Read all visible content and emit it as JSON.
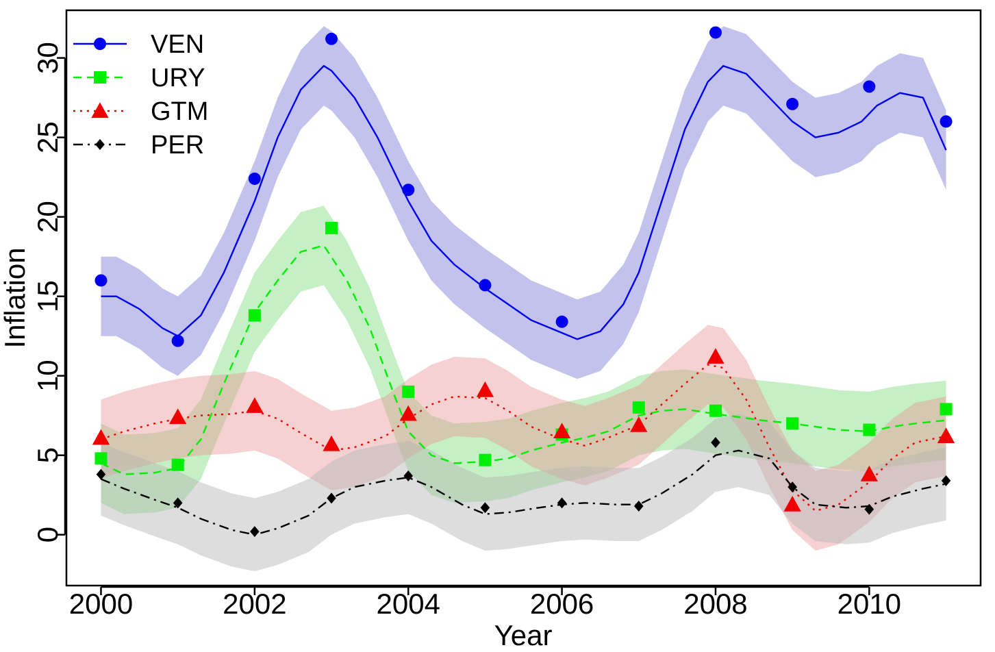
{
  "chart_data": {
    "type": "line",
    "xlabel": "Year",
    "ylabel": "Inflation",
    "xlim": [
      1999.55,
      2011.45
    ],
    "ylim": [
      -3.2,
      33.0
    ],
    "x_ticks": [
      "2000",
      "2002",
      "2004",
      "2006",
      "2008",
      "2010"
    ],
    "x_tick_values": [
      2000,
      2002,
      2004,
      2006,
      2008,
      2010
    ],
    "y_ticks": [
      "0",
      "5",
      "10",
      "15",
      "20",
      "25",
      "30"
    ],
    "y_tick_values": [
      0,
      5,
      10,
      15,
      20,
      25,
      30
    ],
    "grid": false,
    "legend": {
      "position": "top-left",
      "entries": [
        "VEN",
        "URY",
        "GTM",
        "PER"
      ]
    },
    "series": [
      {
        "name": "VEN",
        "color": "#0000ee",
        "band_color": "#7878d8",
        "line_style": "solid",
        "marker": "circle",
        "points_x": [
          2000,
          2001,
          2002,
          2003,
          2004,
          2005,
          2006,
          2007,
          2008,
          2009,
          2010,
          2011
        ],
        "points_y": [
          16.0,
          12.2,
          22.4,
          31.2,
          21.7,
          15.7,
          13.4,
          null,
          31.6,
          27.1,
          28.2,
          26.0
        ],
        "curve_x": [
          2000,
          2000.2,
          2000.5,
          2000.8,
          2001,
          2001.3,
          2001.6,
          2002,
          2002.3,
          2002.6,
          2002.9,
          2003,
          2003.3,
          2003.6,
          2004,
          2004.3,
          2004.6,
          2005,
          2005.3,
          2005.6,
          2006,
          2006.2,
          2006.5,
          2006.8,
          2007,
          2007.3,
          2007.6,
          2007.9,
          2008.1,
          2008.4,
          2008.7,
          2009,
          2009.3,
          2009.6,
          2009.9,
          2010.1,
          2010.4,
          2010.7,
          2011
        ],
        "curve_y": [
          15.0,
          15.0,
          14.2,
          13.0,
          12.5,
          13.8,
          16.5,
          21.0,
          25.0,
          28.0,
          29.5,
          29.2,
          27.5,
          25.0,
          21.0,
          18.5,
          17.0,
          15.5,
          14.5,
          13.5,
          12.7,
          12.3,
          12.8,
          14.5,
          16.5,
          21.0,
          25.5,
          28.5,
          29.5,
          29.0,
          27.5,
          26.0,
          25.0,
          25.3,
          26.0,
          27.0,
          27.8,
          27.5,
          24.2
        ],
        "band_width": 2.5
      },
      {
        "name": "URY",
        "color": "#00ee00",
        "band_color": "#7fdc7f",
        "line_style": "dashed",
        "marker": "square",
        "points_x": [
          2000,
          2001,
          2002,
          2003,
          2004,
          2005,
          2006,
          2007,
          2008,
          2009,
          2010,
          2011
        ],
        "points_y": [
          4.8,
          4.4,
          13.8,
          19.3,
          9.0,
          4.7,
          6.3,
          8.0,
          7.8,
          7.0,
          6.6,
          7.9
        ],
        "curve_x": [
          2000,
          2000.3,
          2000.7,
          2001,
          2001.3,
          2001.6,
          2002,
          2002.3,
          2002.6,
          2002.9,
          2003.2,
          2003.5,
          2003.8,
          2004,
          2004.3,
          2004.6,
          2005,
          2005.3,
          2005.6,
          2006,
          2006.3,
          2006.6,
          2007,
          2007.3,
          2007.6,
          2008,
          2008.3,
          2008.6,
          2009,
          2009.3,
          2009.6,
          2010,
          2010.3,
          2010.6,
          2011
        ],
        "curve_y": [
          4.5,
          3.8,
          3.9,
          4.2,
          6.0,
          9.5,
          14.0,
          16.0,
          17.8,
          18.2,
          16.0,
          13.0,
          9.0,
          6.5,
          5.0,
          4.5,
          4.6,
          4.8,
          5.3,
          5.8,
          6.1,
          6.5,
          7.5,
          7.8,
          7.9,
          7.6,
          7.4,
          7.2,
          7.0,
          6.8,
          6.6,
          6.5,
          6.8,
          7.0,
          7.2
        ],
        "band_width": 2.5
      },
      {
        "name": "GTM",
        "color": "#ee0000",
        "band_color": "#e89a9a",
        "line_style": "dotted",
        "marker": "triangle",
        "points_x": [
          2000,
          2001,
          2002,
          2003,
          2004,
          2005,
          2006,
          2007,
          2008,
          2009,
          2010,
          2011
        ],
        "points_y": [
          6.1,
          7.4,
          8.1,
          5.7,
          7.6,
          9.1,
          6.5,
          6.9,
          11.2,
          1.9,
          3.8,
          6.2
        ],
        "curve_x": [
          2000,
          2000.3,
          2000.7,
          2001,
          2001.3,
          2001.7,
          2002,
          2002.3,
          2002.6,
          2003,
          2003.3,
          2003.7,
          2004,
          2004.3,
          2004.6,
          2005,
          2005.3,
          2005.6,
          2006,
          2006.3,
          2006.6,
          2007,
          2007.3,
          2007.6,
          2007.9,
          2008.1,
          2008.4,
          2008.7,
          2009,
          2009.3,
          2009.6,
          2010,
          2010.3,
          2010.6,
          2011
        ],
        "curve_y": [
          6.0,
          6.5,
          7.0,
          7.3,
          7.5,
          7.6,
          7.8,
          7.3,
          6.4,
          5.3,
          5.5,
          6.2,
          7.3,
          8.2,
          8.7,
          8.6,
          7.8,
          6.8,
          6.0,
          5.6,
          6.1,
          6.9,
          8.2,
          9.5,
          10.7,
          10.5,
          8.5,
          5.5,
          2.8,
          1.5,
          1.9,
          3.3,
          4.8,
          5.8,
          6.2
        ],
        "band_width": 2.5
      },
      {
        "name": "PER",
        "color": "#000000",
        "band_color": "#b4b4b4",
        "line_style": "dashdot",
        "marker": "diamond",
        "points_x": [
          2000,
          2001,
          2002,
          2003,
          2004,
          2005,
          2006,
          2007,
          2008,
          2009,
          2010,
          2011
        ],
        "points_y": [
          3.8,
          2.0,
          0.2,
          2.3,
          3.7,
          1.7,
          2.0,
          1.8,
          5.8,
          3.0,
          1.6,
          3.4
        ],
        "curve_x": [
          2000,
          2000.3,
          2000.7,
          2001,
          2001.3,
          2001.7,
          2002,
          2002.3,
          2002.7,
          2003,
          2003.3,
          2003.7,
          2004,
          2004.3,
          2004.7,
          2005,
          2005.3,
          2005.7,
          2006,
          2006.3,
          2006.7,
          2007,
          2007.3,
          2007.7,
          2008,
          2008.3,
          2008.7,
          2009,
          2009.3,
          2009.7,
          2010,
          2010.3,
          2010.7,
          2011
        ],
        "curve_y": [
          3.5,
          2.9,
          2.2,
          1.7,
          1.0,
          0.3,
          0.0,
          0.4,
          1.2,
          2.3,
          3.0,
          3.4,
          3.6,
          3.0,
          1.9,
          1.3,
          1.4,
          1.7,
          1.9,
          2.0,
          1.9,
          1.9,
          2.6,
          3.8,
          5.0,
          5.3,
          4.8,
          3.0,
          1.9,
          1.7,
          1.8,
          2.4,
          2.9,
          3.2
        ],
        "band_width": 2.3
      }
    ]
  }
}
